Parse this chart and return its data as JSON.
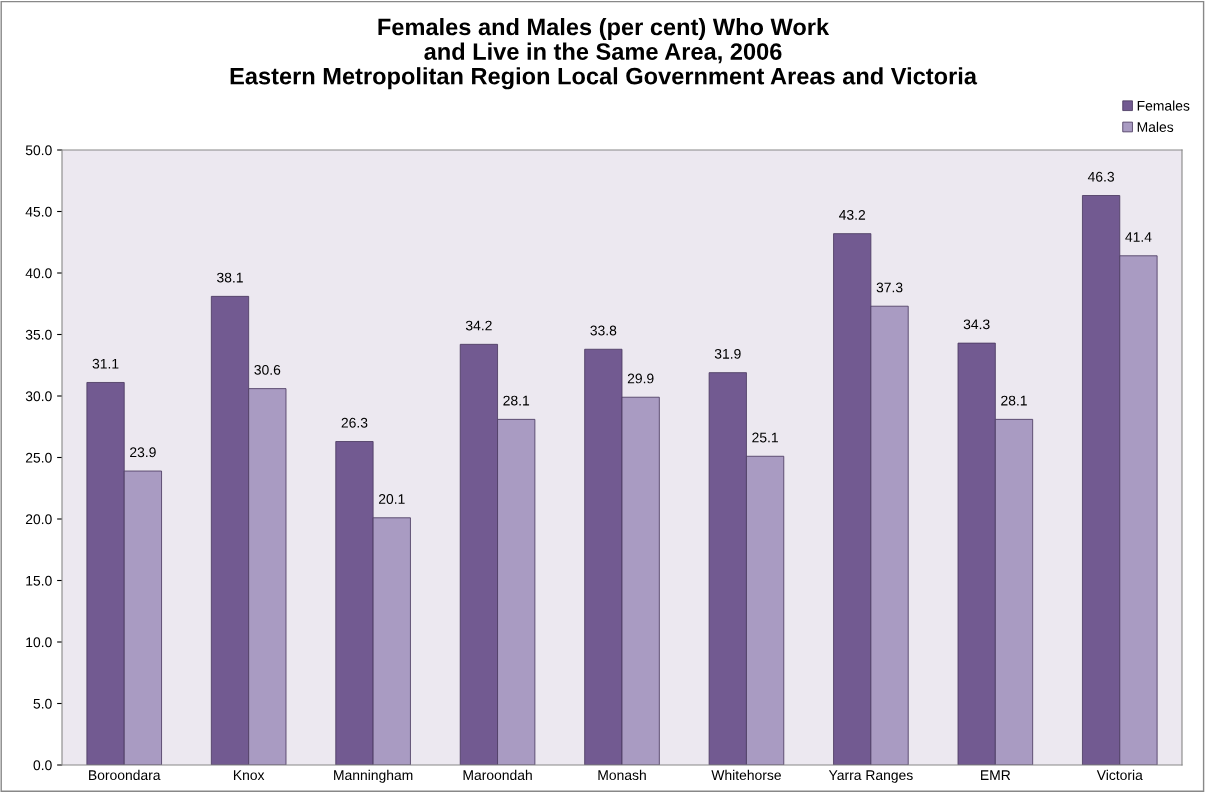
{
  "chart_data": {
    "type": "bar",
    "title": "Females and Males (per cent) Who Work\nand Live in the Same Area, 2006\nEastern Metropolitan Region Local Government Areas and Victoria",
    "categories": [
      "Boroondara",
      "Knox",
      "Manningham",
      "Maroondah",
      "Monash",
      "Whitehorse",
      "Yarra Ranges",
      "EMR",
      "Victoria"
    ],
    "series": [
      {
        "name": "Females",
        "color": "#725a91",
        "values": [
          31.1,
          38.1,
          26.3,
          34.2,
          33.8,
          31.9,
          43.2,
          34.3,
          46.3
        ]
      },
      {
        "name": "Males",
        "color": "#a99bc2",
        "values": [
          23.9,
          30.6,
          20.1,
          28.1,
          29.9,
          25.1,
          37.3,
          28.1,
          41.4
        ]
      }
    ],
    "ylim": [
      0,
      50
    ],
    "yticks": [
      {
        "value": 0,
        "label": "0.0"
      },
      {
        "value": 5,
        "label": "5.0"
      },
      {
        "value": 10,
        "label": "10.0"
      },
      {
        "value": 15,
        "label": "15.0"
      },
      {
        "value": 20,
        "label": "20.0"
      },
      {
        "value": 25,
        "label": "25.0"
      },
      {
        "value": 30,
        "label": "30.0"
      },
      {
        "value": 35,
        "label": "35.0"
      },
      {
        "value": 40,
        "label": "40.0"
      },
      {
        "value": 45,
        "label": "45.0"
      },
      {
        "value": 50,
        "label": "50.0"
      }
    ],
    "data_labels": true,
    "grid": false,
    "legend": "top right"
  }
}
